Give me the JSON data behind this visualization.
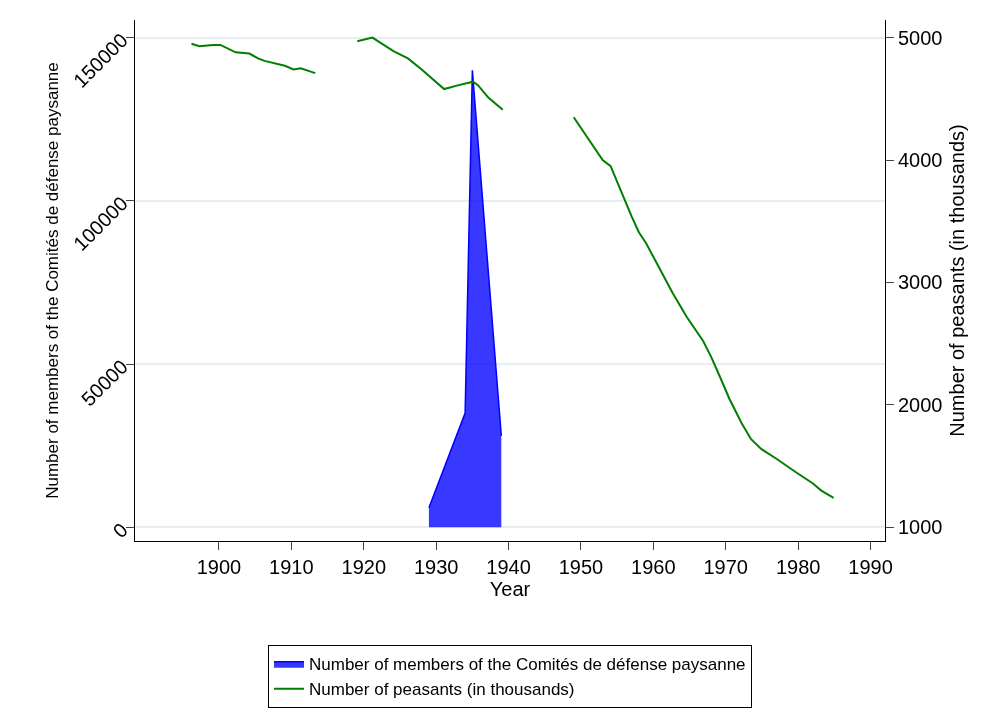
{
  "chart_data": {
    "type": "line",
    "xlabel": "Year",
    "ylabel": "Number of members of the Comités de défense paysanne",
    "y2label": "Number of peasants (in thousands)",
    "series": [
      {
        "name": "Number of members of the Comités de défense paysanne",
        "type": "area",
        "color": "#0000ff",
        "x": [
          1929,
          1934,
          1935,
          1939
        ],
        "values": [
          6000,
          35000,
          140000,
          28000
        ]
      },
      {
        "name": "Number of peasants (in thousands)",
        "axis": "y2",
        "color": "#007f00",
        "x": [
          1896.2,
          1897.3,
          1899.2,
          1900.2,
          1902.3,
          1904.2,
          1905.4,
          1906.3,
          1909.1,
          1910.3,
          1911.3,
          1913.3,
          1916,
          1919.1,
          1921.2,
          1924.1,
          1926.1,
          1928,
          1931.1,
          1933,
          1935.1,
          1935.8,
          1937.2,
          1939.2,
          1944,
          1949,
          1953,
          1954.1,
          1955.8,
          1957,
          1958,
          1959,
          1960.9,
          1962.7,
          1964.6,
          1966.9,
          1968,
          1969.2,
          1970.5,
          1972.2,
          1973.5,
          1974.9,
          1977,
          1979.7,
          1982,
          1983.2,
          1984.9
        ],
        "values": [
          4950,
          4930,
          4940,
          4940,
          4880,
          4870,
          4830,
          4810,
          4770,
          4740,
          4750,
          4710,
          null,
          4970,
          5000,
          4890,
          4830,
          4740,
          4580,
          4610,
          4640,
          4610,
          4510,
          4410,
          null,
          4350,
          4000,
          3950,
          3710,
          3540,
          3410,
          3320,
          3110,
          2910,
          2720,
          2520,
          2390,
          2230,
          2050,
          1850,
          1720,
          1640,
          1560,
          1450,
          1360,
          1300,
          1240
        ]
      }
    ],
    "xlim": [
      1888.4,
      1992
    ],
    "xticks": [
      1900,
      1910,
      1920,
      1930,
      1940,
      1950,
      1960,
      1970,
      1980,
      1990
    ],
    "ylim": [
      -4200,
      155400
    ],
    "yticks": [
      0,
      50000,
      100000,
      150000
    ],
    "y2lim": [
      888,
      5144
    ],
    "y2ticks": [
      1000,
      2000,
      3000,
      4000,
      5000
    ],
    "grid": "y",
    "legend": "bottom"
  }
}
